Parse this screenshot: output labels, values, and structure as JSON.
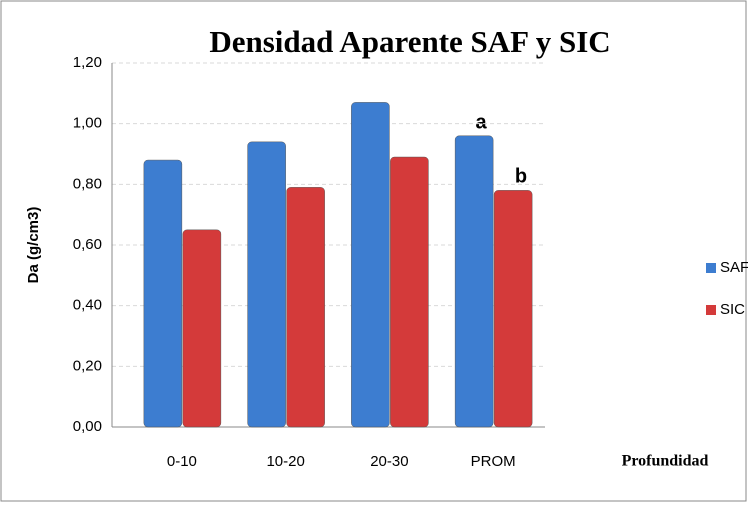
{
  "chart_data": {
    "type": "bar",
    "title": "Densidad Aparente SAF y SIC",
    "x_label": "Profundidad",
    "y_label": "Da (g/cm3)",
    "categories": [
      "0-10",
      "10-20",
      "20-30",
      "PROM"
    ],
    "series": [
      {
        "name": "SAF",
        "color": "#3d7dd0",
        "values": [
          0.88,
          0.94,
          1.07,
          0.96
        ]
      },
      {
        "name": "SIC",
        "color": "#d43a3a",
        "values": [
          0.65,
          0.79,
          0.89,
          0.78
        ]
      }
    ],
    "annotations": [
      "a",
      "b"
    ],
    "ylim": [
      0,
      1.2
    ],
    "yticks": [
      {
        "value": 0,
        "label": "0,00"
      },
      {
        "value": 0.2,
        "label": "0,20"
      },
      {
        "value": 0.4,
        "label": "0,40"
      },
      {
        "value": 0.6,
        "label": "0,60"
      },
      {
        "value": 0.8,
        "label": "0,80"
      },
      {
        "value": 1,
        "label": "1,00"
      },
      {
        "value": 1.2,
        "label": "1,20"
      }
    ],
    "grid": true,
    "legend": "right"
  }
}
